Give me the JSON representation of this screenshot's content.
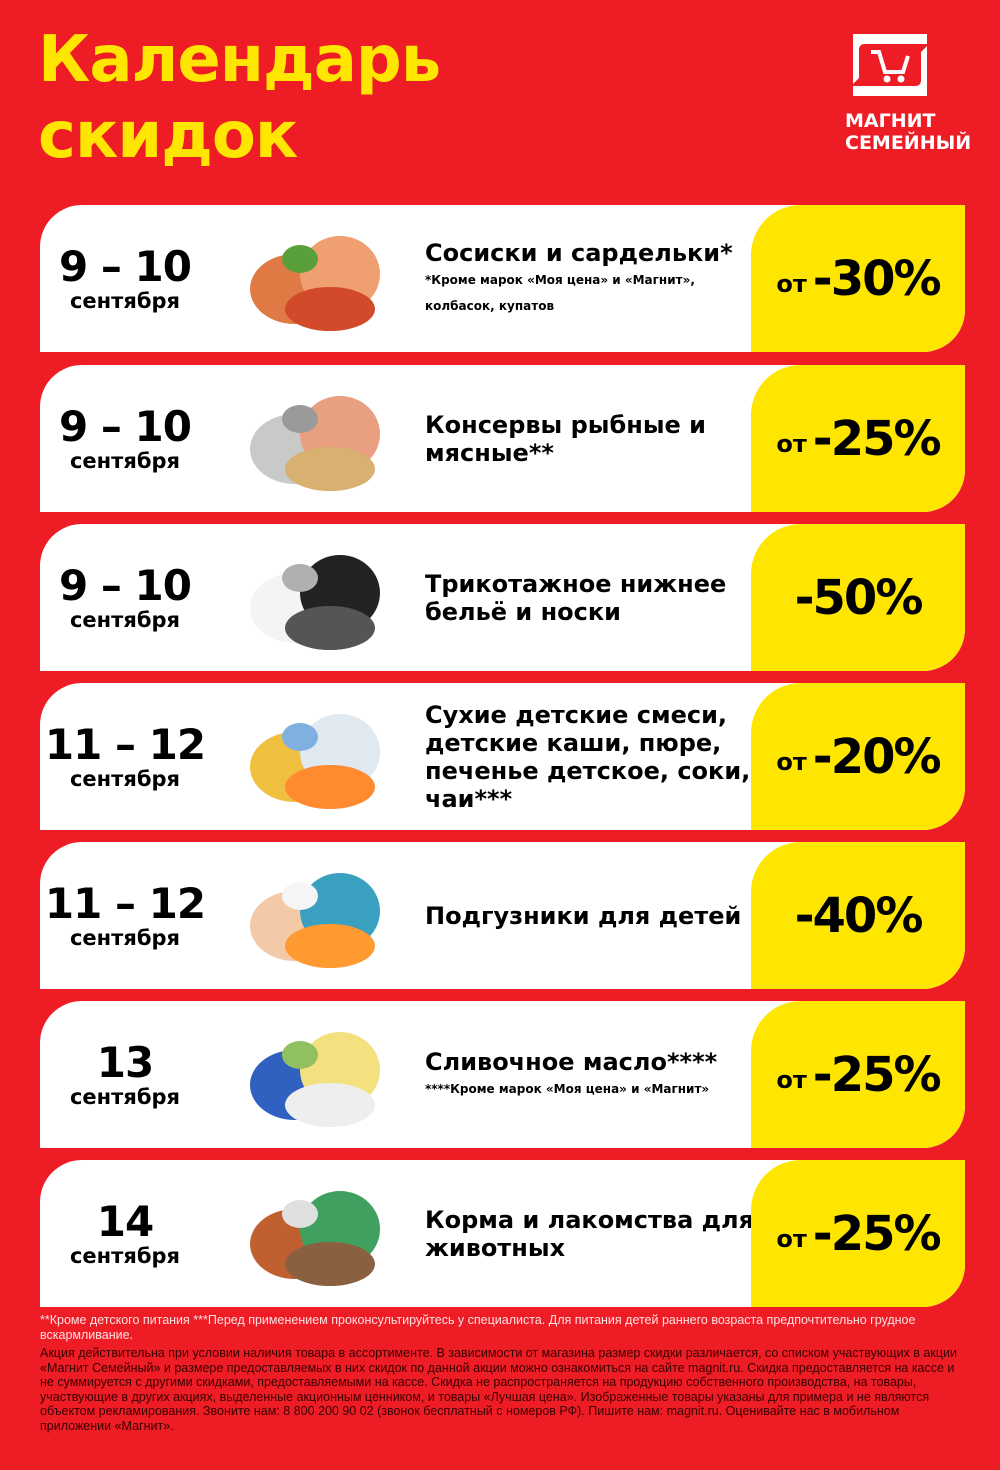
{
  "header": {
    "title_line1": "Календарь",
    "title_line2": "скидок"
  },
  "logo": {
    "line1": "МАГНИТ",
    "line2": "СЕМЕЙНЫЙ",
    "icon": "shopping-cart-icon"
  },
  "colors": {
    "background": "#ee1c25",
    "accent": "#ffe600",
    "card": "#ffffff"
  },
  "offers": [
    {
      "date": "9 – 10",
      "month": "сентября",
      "name": "Сосиски и сардельки*",
      "note": "*Кроме марок «Моя цена» и «Магнит»,",
      "note2": "колбасок, купатов",
      "prefix": "от",
      "discount": "-30%",
      "image": "sausages"
    },
    {
      "date": "9 – 10",
      "month": "сентября",
      "name": "Консервы рыбные и мясные**",
      "prefix": "от",
      "discount": "-25%",
      "image": "canned-food"
    },
    {
      "date": "9 – 10",
      "month": "сентября",
      "name": "Трикотажное нижнее бельё и носки",
      "prefix": "",
      "discount": "-50%",
      "image": "underwear"
    },
    {
      "date": "11 – 12",
      "month": "сентября",
      "name": "Сухие детские смеси, детские каши, пюре, печенье детское, соки, чаи***",
      "prefix": "от",
      "discount": "-20%",
      "image": "baby-food"
    },
    {
      "date": "11 – 12",
      "month": "сентября",
      "name": "Подгузники для детей",
      "prefix": "",
      "discount": "-40%",
      "image": "diapers"
    },
    {
      "date": "13",
      "month": "сентября",
      "name": "Сливочное масло****",
      "note": "****Кроме марок «Моя цена» и «Магнит»",
      "prefix": "от",
      "discount": "-25%",
      "image": "butter"
    },
    {
      "date": "14",
      "month": "сентября",
      "name": "Корма и лакомства для животных",
      "prefix": "от",
      "discount": "-25%",
      "image": "pet-food"
    }
  ],
  "footer": {
    "footnote": "**Кроме детского питания ***Перед применением проконсультируйтесь у специалиста. Для питания детей раннего возраста предпочтительно грудное вскармливание.",
    "legal": "Акция действительна при условии наличия товара в ассортименте. В зависимости от магазина размер скидки различается, со списком участвующих в акции «Магнит Семейный» и размере предоставляемых в них скидок по данной акции можно ознакомиться на сайте magnit.ru. Скидка предоставляется на кассе и не суммируется с другими скидками, предоставляемыми на кассе. Скидка не распространяется на продукцию собственного производства, на товары, участвующие в других акциях, выделенные акционным ценником, и товары «Лучшая цена». Изображенные товары указаны для примера и не являются объектом рекламирования. Звоните нам: 8 800 200 90 02 (звонок бесплатный с номеров РФ). Пишите нам: magnit.ru. Оценивайте нас в мобильном приложении «Магнит»."
  }
}
